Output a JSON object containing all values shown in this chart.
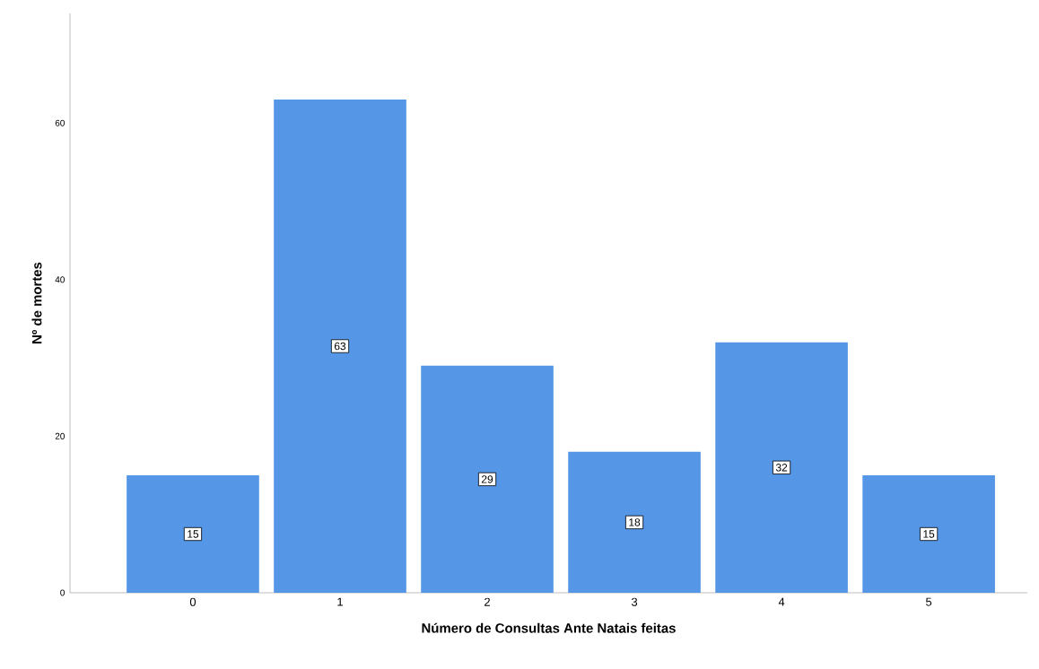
{
  "chart_data": {
    "type": "bar",
    "xlabel": "Número de Consultas Ante Natais feitas",
    "ylabel": "Nº de mortes",
    "categories": [
      "0",
      "1",
      "2",
      "3",
      "4",
      "5"
    ],
    "values": [
      15,
      63,
      29,
      18,
      32,
      15
    ],
    "color": "#5596e6",
    "ylim": [
      0,
      74
    ],
    "yticks": [
      0,
      20,
      40,
      60
    ],
    "data_labels": true,
    "grid": false
  }
}
